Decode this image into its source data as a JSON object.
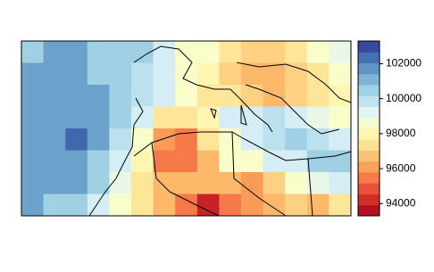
{
  "chart_data": {
    "type": "heatmap",
    "z": [
      [
        100500,
        101500,
        101500,
        100500,
        100500,
        100500,
        99500,
        98500,
        98500,
        97500,
        97000,
        97000,
        97500,
        98500,
        99000
      ],
      [
        101500,
        101500,
        101500,
        100500,
        100500,
        100000,
        99500,
        98500,
        98000,
        97000,
        96500,
        96500,
        97000,
        97500,
        98500
      ],
      [
        101500,
        101500,
        101500,
        101500,
        100500,
        100000,
        99500,
        98500,
        97500,
        97500,
        97000,
        96500,
        97000,
        97500,
        98000
      ],
      [
        101500,
        101500,
        101500,
        101500,
        100500,
        99500,
        97500,
        97500,
        98000,
        99500,
        99500,
        100000,
        99500,
        99000,
        98500
      ],
      [
        101500,
        101500,
        102500,
        101500,
        100000,
        98500,
        96000,
        95500,
        97500,
        98500,
        99500,
        100000,
        100500,
        100000,
        99500
      ],
      [
        101500,
        101500,
        101500,
        100500,
        99500,
        98000,
        95500,
        95500,
        96500,
        98500,
        98500,
        99500,
        99500,
        100500,
        100500
      ],
      [
        101500,
        101500,
        101500,
        100500,
        99000,
        97500,
        96500,
        96500,
        96500,
        96500,
        96000,
        97000,
        98500,
        99000,
        99500
      ],
      [
        101500,
        100500,
        100500,
        99500,
        98500,
        97500,
        96500,
        95500,
        94000,
        95500,
        96000,
        96500,
        97000,
        96500,
        97500
      ]
    ],
    "zlim": [
      93300,
      103300
    ],
    "zticks": [
      94000,
      96000,
      98000,
      100000,
      102000
    ],
    "colors": [
      "#a50026",
      "#d73027",
      "#f46d43",
      "#fdae61",
      "#fee090",
      "#ffffbf",
      "#e0f3f8",
      "#abd9e9",
      "#74add1",
      "#4575b4",
      "#313695"
    ],
    "colorbar_bands": 16
  }
}
